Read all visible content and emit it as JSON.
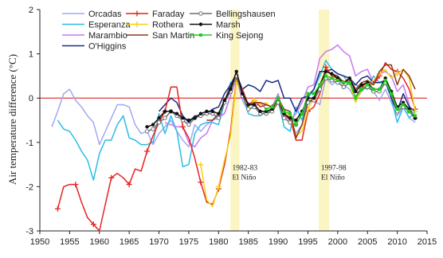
{
  "chart_data": {
    "type": "line",
    "title": "",
    "xlabel": "",
    "ylabel": "Air temperature difference (°C)",
    "xlim": [
      1950,
      2015
    ],
    "ylim": [
      -3,
      2
    ],
    "xticks": [
      1950,
      1955,
      1960,
      1965,
      1970,
      1975,
      1980,
      1985,
      1990,
      1995,
      2000,
      2005,
      2010,
      2015
    ],
    "yticks": [
      -3,
      -2,
      -1,
      0,
      1,
      2
    ],
    "grid": false,
    "legend_position": "top-left",
    "reference_line": {
      "y": 0,
      "color": "#e02020"
    },
    "highlight_bands": [
      {
        "x0": 1982,
        "x1": 1983.5,
        "color": "#fbf5c4",
        "label_line1": "1982-83",
        "label_line2": "El Niño",
        "label_x": 1982.3,
        "label_y": -1.62
      },
      {
        "x0": 1996.8,
        "x1": 1998.6,
        "color": "#fbf5c4",
        "label_line1": "1997-98",
        "label_line2": "El Niño",
        "label_x": 1997.2,
        "label_y": -1.62
      }
    ],
    "series": [
      {
        "name": "Orcadas",
        "color": "#a3a8f0",
        "marker": "none",
        "x": [
          1952,
          1953,
          1954,
          1955,
          1956,
          1957,
          1958,
          1959,
          1960,
          1961,
          1962,
          1963,
          1964,
          1965,
          1966,
          1967,
          1968,
          1969,
          1970,
          1971,
          1972,
          1973,
          1974,
          1975,
          1976,
          1977,
          1978,
          1979,
          1980,
          1981,
          1982,
          1983,
          1984,
          1985,
          1986,
          1987,
          1988,
          1989,
          1990,
          1991,
          1992,
          1993,
          1994,
          1995,
          1996,
          1997,
          1998,
          1999,
          2000,
          2001,
          2002,
          2003,
          2004,
          2005,
          2006,
          2007,
          2008,
          2009,
          2010,
          2011,
          2012,
          2013
        ],
        "y": [
          -0.65,
          -0.3,
          0.1,
          0.2,
          -0.05,
          -0.2,
          -0.4,
          -0.55,
          -1.05,
          -0.75,
          -0.45,
          -0.15,
          -0.15,
          -0.2,
          -0.6,
          -0.8,
          -0.75,
          -1.05,
          -0.8,
          -0.65,
          -0.5,
          -0.75,
          -0.95,
          -1.1,
          -0.6,
          -0.75,
          -0.6,
          -0.5,
          -0.45,
          -0.35,
          0.05,
          0.45,
          -0.05,
          -0.3,
          -0.15,
          -0.3,
          -0.3,
          -0.25,
          -0.05,
          -0.4,
          -0.45,
          -0.8,
          -0.6,
          -0.05,
          -0.05,
          -0.15,
          0.45,
          0.3,
          0.4,
          0.3,
          0.2,
          -0.05,
          0.15,
          0.3,
          0.15,
          -0.05,
          0.2,
          -0.1,
          -0.4,
          -0.2,
          -0.45,
          -0.55
        ]
      },
      {
        "name": "Esperanza",
        "color": "#2bbce6",
        "marker": "none",
        "x": [
          1952,
          1953,
          1954,
          1955,
          1956,
          1957,
          1958,
          1959,
          1960,
          1961,
          1962,
          1963,
          1964,
          1965,
          1966,
          1967,
          1968,
          1969,
          1970,
          1971,
          1972,
          1973,
          1974,
          1975,
          1976,
          1977,
          1978,
          1979,
          1980,
          1981,
          1982,
          1983,
          1984,
          1985,
          1986,
          1987,
          1988,
          1989,
          1990,
          1991,
          1992,
          1993,
          1994,
          1995,
          1996,
          1997,
          1998,
          1999,
          2000,
          2001,
          2002,
          2003,
          2004,
          2005,
          2006,
          2007,
          2008,
          2009,
          2010,
          2011,
          2012,
          2013
        ],
        "y": [
          null,
          -0.5,
          -0.7,
          -0.75,
          -0.95,
          -1.2,
          -1.4,
          -1.85,
          -1.25,
          -0.95,
          -0.95,
          -0.6,
          -0.4,
          -0.9,
          -0.95,
          -1.05,
          -1.05,
          -1.0,
          -0.35,
          -0.8,
          -0.4,
          -0.75,
          -1.55,
          -1.5,
          -0.8,
          -0.6,
          -0.55,
          -0.55,
          -0.6,
          -0.1,
          0.35,
          0.4,
          0.1,
          -0.35,
          -0.4,
          -0.4,
          -0.3,
          -0.3,
          -0.05,
          -0.65,
          -0.75,
          -0.2,
          -0.5,
          0.0,
          0.2,
          0.5,
          0.85,
          0.65,
          0.55,
          0.5,
          0.3,
          0.3,
          0.25,
          0.2,
          0.5,
          0.35,
          0.35,
          0.0,
          -0.55,
          -0.2,
          -0.45,
          -0.3
        ]
      },
      {
        "name": "Marambio",
        "color": "#c978ee",
        "marker": "none",
        "x": [
          1971,
          1972,
          1973,
          1974,
          1975,
          1976,
          1977,
          1978,
          1979,
          1980,
          1981,
          1982,
          1983,
          1984,
          1985,
          1986,
          1987,
          1988,
          1989,
          1990,
          1991,
          1992,
          1993,
          1994,
          1995,
          1996,
          1997,
          1998,
          1999,
          2000,
          2001,
          2002,
          2003,
          2004,
          2005,
          2006,
          2007,
          2008,
          2009,
          2010,
          2011,
          2012,
          2013
        ],
        "y": [
          -0.55,
          -0.6,
          -0.65,
          -0.65,
          -1.0,
          -1.1,
          -0.9,
          -0.8,
          -0.5,
          -0.4,
          -0.35,
          0.05,
          0.45,
          0.0,
          -0.1,
          -0.2,
          -0.1,
          -0.25,
          -0.2,
          0.1,
          -0.4,
          -0.5,
          -0.35,
          -0.1,
          0.25,
          0.3,
          0.9,
          1.05,
          1.1,
          1.2,
          1.05,
          0.95,
          0.5,
          0.6,
          0.65,
          0.35,
          0.55,
          0.6,
          0.5,
          0.15,
          0.3,
          -0.15,
          -0.5
        ]
      },
      {
        "name": "O'Higgins",
        "color": "#1c2a86",
        "marker": "none",
        "x": [
          1970,
          1971,
          1972,
          1973,
          1974,
          1975,
          1976,
          1977,
          1978,
          1979,
          1980,
          1981,
          1982,
          1983,
          1984,
          1985,
          1986,
          1987,
          1988,
          1989,
          1990,
          1991,
          1992,
          1993,
          1994,
          1995,
          1996,
          1997,
          1998,
          1999,
          2000,
          2001,
          2002,
          2003,
          2004,
          2005,
          2006,
          2007,
          2008,
          2009,
          2010,
          2011,
          2012,
          2013
        ],
        "y": [
          -0.3,
          -0.15,
          0.0,
          -0.1,
          -0.4,
          -0.55,
          -0.4,
          -0.4,
          -0.35,
          -0.25,
          -0.2,
          0.1,
          0.3,
          0.55,
          0.2,
          0.3,
          0.25,
          0.15,
          0.4,
          0.35,
          0.4,
          0.0,
          0.0,
          -0.3,
          0.0,
          0.05,
          0.2,
          0.6,
          0.6,
          0.65,
          0.55,
          0.5,
          0.45,
          0.3,
          0.45,
          0.5,
          0.35,
          0.35,
          0.4,
          0.0,
          -0.3,
          0.1,
          -0.2,
          -0.3
        ]
      },
      {
        "name": "Faraday",
        "color": "#e62222",
        "marker": "plus",
        "x": [
          1953,
          1954,
          1955,
          1956,
          1957,
          1958,
          1959,
          1960,
          1961,
          1962,
          1963,
          1964,
          1965,
          1966,
          1967,
          1968,
          1969,
          1970,
          1971,
          1972,
          1973,
          1974,
          1975,
          1976,
          1977,
          1978,
          1979,
          1980,
          1981,
          1982,
          1983,
          1984,
          1985,
          1986,
          1987,
          1988,
          1989,
          1990,
          1991,
          1992,
          1993,
          1994,
          1995,
          1996,
          1997,
          1998,
          1999,
          2000,
          2001,
          2002,
          2003,
          2004,
          2005,
          2006,
          2007,
          2008,
          2009,
          2010,
          2011,
          2012,
          2013
        ],
        "y": [
          -2.5,
          -2.0,
          -1.95,
          -1.95,
          -2.35,
          -2.7,
          -2.85,
          -3.0,
          -2.4,
          -1.8,
          -1.7,
          -1.8,
          -1.95,
          -1.6,
          -1.65,
          -1.2,
          -0.85,
          -0.55,
          -0.3,
          0.25,
          0.25,
          -0.65,
          -0.9,
          -1.35,
          -1.9,
          -2.35,
          -2.4,
          -2.05,
          -1.5,
          -0.75,
          0.4,
          0.2,
          -0.15,
          -0.05,
          -0.2,
          -0.15,
          -0.2,
          -0.05,
          -0.4,
          -0.45,
          -0.95,
          -0.95,
          -0.3,
          -0.2,
          0.1,
          0.7,
          0.5,
          0.45,
          0.35,
          0.4,
          0.0,
          0.25,
          0.35,
          0.3,
          0.5,
          0.8,
          0.65,
          0.6,
          0.45,
          0.2,
          -0.25
        ]
      },
      {
        "name": "Rothera",
        "color": "#f4d21a",
        "marker": "plus",
        "x": [
          1977,
          1978,
          1979,
          1980,
          1981,
          1982,
          1983,
          1984,
          1985,
          1986,
          1987,
          1988,
          1989,
          1990,
          1991,
          1992,
          1993,
          1994,
          1995,
          1996,
          1997,
          1998,
          1999,
          2000,
          2001,
          2002,
          2003,
          2004,
          2005,
          2006,
          2007,
          2008,
          2009,
          2010,
          2011,
          2012,
          2013
        ],
        "y": [
          -1.5,
          -2.3,
          -2.45,
          -2.0,
          -1.4,
          -0.85,
          0.35,
          0.15,
          -0.2,
          -0.05,
          -0.15,
          -0.1,
          -0.25,
          -0.05,
          -0.3,
          -0.4,
          -0.85,
          -0.75,
          -0.25,
          0.0,
          0.2,
          0.5,
          0.45,
          0.4,
          0.35,
          0.35,
          -0.1,
          0.2,
          0.3,
          0.4,
          0.55,
          0.65,
          0.45,
          0.55,
          0.65,
          0.45,
          -0.3
        ]
      },
      {
        "name": "San Martin",
        "color": "#8a3a16",
        "marker": "none",
        "x": [
          1978,
          1979,
          1980,
          1981,
          1982,
          1983,
          1984,
          1985,
          1986,
          1987,
          1988,
          1989,
          1990,
          1991,
          1992,
          1993,
          1994,
          1995,
          1996,
          1997,
          1998,
          1999,
          2000,
          2001,
          2002,
          2003,
          2004,
          2005,
          2006,
          2007,
          2008,
          2009,
          2010,
          2011,
          2012,
          2013
        ],
        "y": [
          -0.5,
          -0.5,
          -0.35,
          -0.05,
          0.25,
          0.5,
          0.15,
          -0.15,
          -0.1,
          -0.1,
          -0.15,
          -0.2,
          0.0,
          -0.25,
          -0.3,
          -0.9,
          -0.6,
          -0.1,
          0.0,
          0.3,
          0.6,
          0.55,
          0.5,
          0.35,
          0.45,
          0.2,
          0.35,
          0.4,
          0.3,
          0.6,
          0.75,
          0.75,
          0.3,
          0.65,
          0.5,
          0.2
        ]
      },
      {
        "name": "Bellingshausen",
        "color": "#6e6e6e",
        "marker": "circle",
        "x": [
          1968,
          1969,
          1970,
          1971,
          1972,
          1973,
          1974,
          1975,
          1976,
          1977,
          1978,
          1979,
          1980,
          1981,
          1982,
          1983,
          1984,
          1985,
          1986,
          1987,
          1988,
          1989,
          1990,
          1991,
          1992,
          1993,
          1994,
          1995,
          1996,
          1997,
          1998,
          1999,
          2000,
          2001,
          2002,
          2003,
          2004,
          2005,
          2006,
          2007,
          2008,
          2009,
          2010,
          2011,
          2012,
          2013
        ],
        "y": [
          -0.75,
          -0.7,
          -0.55,
          -0.45,
          -0.3,
          -0.4,
          -0.5,
          -0.6,
          -0.45,
          -0.4,
          -0.35,
          -0.35,
          -0.45,
          -0.1,
          0.15,
          0.5,
          0.05,
          -0.25,
          -0.2,
          -0.35,
          -0.35,
          -0.3,
          -0.1,
          -0.45,
          -0.55,
          -0.6,
          -0.35,
          -0.1,
          -0.05,
          0.2,
          0.45,
          0.4,
          0.35,
          0.25,
          0.35,
          0.1,
          0.2,
          0.25,
          0.15,
          0.15,
          0.35,
          0.1,
          -0.3,
          -0.2,
          -0.3,
          -0.45
        ]
      },
      {
        "name": "Marsh",
        "color": "#111111",
        "marker": "dot",
        "x": [
          1968,
          1969,
          1970,
          1971,
          1972,
          1973,
          1974,
          1975,
          1976,
          1977,
          1978,
          1979,
          1980,
          1981,
          1982,
          1983,
          1984,
          1985,
          1986,
          1987,
          1988,
          1989,
          1990,
          1991,
          1992,
          1993,
          1994,
          1995,
          1996,
          1997,
          1998,
          1999,
          2000,
          2001,
          2002,
          2003,
          2004,
          2005,
          2006,
          2007,
          2008,
          2009,
          2010,
          2011,
          2012,
          2013
        ],
        "y": [
          -0.65,
          -0.6,
          -0.45,
          -0.3,
          -0.3,
          -0.35,
          -0.45,
          -0.5,
          -0.45,
          -0.35,
          -0.3,
          -0.3,
          -0.35,
          -0.05,
          0.2,
          0.6,
          0.1,
          -0.15,
          -0.15,
          -0.3,
          -0.3,
          -0.25,
          0.0,
          -0.35,
          -0.45,
          -0.5,
          -0.3,
          0.0,
          0.0,
          0.3,
          0.6,
          0.55,
          0.45,
          0.35,
          0.45,
          0.15,
          0.3,
          0.35,
          0.2,
          0.2,
          0.45,
          0.15,
          -0.2,
          -0.1,
          -0.25,
          -0.45
        ]
      },
      {
        "name": "King Sejong",
        "color": "#22cc22",
        "marker": "square",
        "x": [
          1988,
          1989,
          1990,
          1991,
          1992,
          1993,
          1994,
          1995,
          1996,
          1997,
          1998,
          1999,
          2000,
          2001,
          2002,
          2003,
          2004,
          2005,
          2006,
          2007,
          2008,
          2009,
          2010,
          2011,
          2012,
          2013
        ],
        "y": [
          -0.25,
          -0.2,
          0.0,
          -0.3,
          -0.35,
          -0.6,
          -0.35,
          0.1,
          0.1,
          0.3,
          0.5,
          0.45,
          0.4,
          0.35,
          0.35,
          0.0,
          0.2,
          0.3,
          0.2,
          0.2,
          0.4,
          0.1,
          -0.25,
          -0.15,
          -0.3,
          -0.4
        ]
      }
    ],
    "annotations": [
      {
        "text": "1982-83"
      },
      {
        "text": "El Niño"
      },
      {
        "text": "1997-98"
      },
      {
        "text": "El Niño"
      }
    ]
  }
}
